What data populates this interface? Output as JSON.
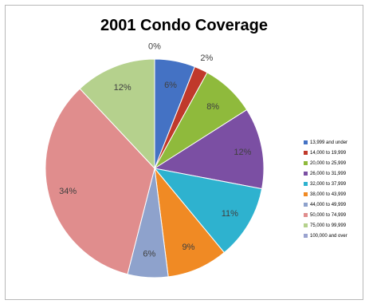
{
  "chart_data": {
    "type": "pie",
    "title": "2001 Condo Coverage",
    "categories": [
      "13,999 and under",
      "14,000 to 19,999",
      "20,000 to 25,999",
      "26,000 to 31,999",
      "32,000 to 37,999",
      "38,000 to 43,999",
      "44,000 to 49,999",
      "50,000 to 74,999",
      "75,000 to 99,999",
      "100,000 and over"
    ],
    "values": [
      6,
      2,
      8,
      12,
      11,
      9,
      6,
      34,
      12,
      0
    ],
    "labels": [
      "6%",
      "2%",
      "8%",
      "12%",
      "11%",
      "9%",
      "6%",
      "34%",
      "12%",
      "0%"
    ],
    "colors": [
      "#4472c4",
      "#c0392b",
      "#8fba3c",
      "#7b4fa3",
      "#2eb2cf",
      "#f08a24",
      "#8ea2cc",
      "#e08d8d",
      "#b5d18d",
      "#9aa3cf"
    ],
    "legend_position": "right"
  }
}
